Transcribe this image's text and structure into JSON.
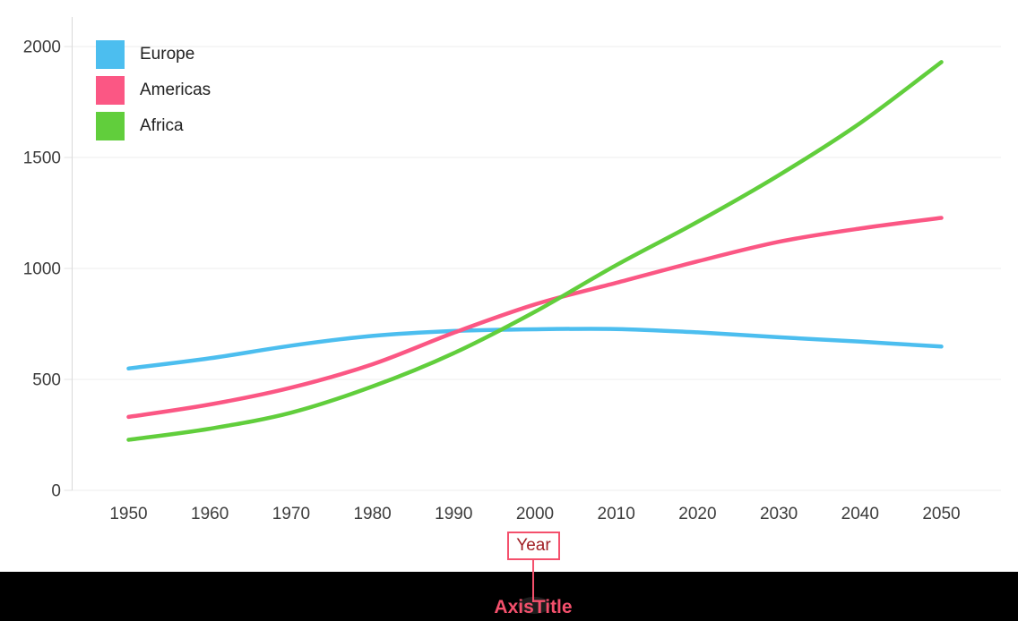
{
  "chart_data": {
    "type": "line",
    "title": "",
    "xlabel": "Year",
    "ylabel": "",
    "x": [
      1950,
      1960,
      1970,
      1980,
      1990,
      2000,
      2010,
      2020,
      2030,
      2040,
      2050
    ],
    "x_tick_labels": [
      "1950",
      "1960",
      "1970",
      "1980",
      "1990",
      "2000",
      "2010",
      "2020",
      "2030",
      "2040",
      "2050"
    ],
    "y_ticks": [
      0,
      500,
      1000,
      1500,
      2000
    ],
    "y_tick_labels": [
      "0",
      "500",
      "1000",
      "1500",
      "2000"
    ],
    "ylim": [
      0,
      2140
    ],
    "grid": true,
    "legend_position": "top-left",
    "series": [
      {
        "name": "Europe",
        "color": "#4CBEEF",
        "values": [
          549,
          595,
          652,
          696,
          718,
          726,
          727,
          712,
          690,
          670,
          648
        ]
      },
      {
        "name": "Americas",
        "color": "#FB5784",
        "values": [
          331,
          387,
          463,
          568,
          710,
          838,
          935,
          1032,
          1120,
          1180,
          1228
        ]
      },
      {
        "name": "Africa",
        "color": "#61CE3C",
        "values": [
          228,
          278,
          350,
          468,
          618,
          805,
          1015,
          1210,
          1420,
          1655,
          1930
        ]
      }
    ]
  },
  "annotation": {
    "axis_title_label": "Year",
    "overlay_label": "AxisTitle",
    "highlight_color": "#F4506C",
    "axis_title_text_color": "#A01E24"
  },
  "colors": {
    "background": "#FFFFFF",
    "overlay_band": "#000000",
    "grid_line": "#EEEEEE",
    "axis_line": "#D9D9D9",
    "tick_mark": "#E3E3E3",
    "tick_label": "#3C3C3C",
    "legend_label": "#212121"
  }
}
